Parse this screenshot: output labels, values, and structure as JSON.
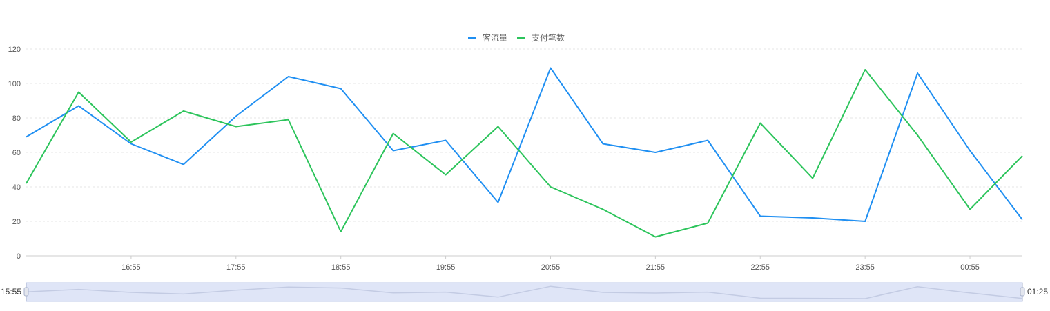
{
  "chart_data": {
    "type": "line",
    "title": "",
    "xlabel": "",
    "ylabel": "",
    "ylim": [
      0,
      120
    ],
    "yticks": [
      0,
      20,
      40,
      60,
      80,
      100,
      120
    ],
    "x": [
      "15:55",
      "16:25",
      "16:55",
      "17:25",
      "17:55",
      "18:25",
      "18:55",
      "19:25",
      "19:55",
      "20:25",
      "20:55",
      "21:25",
      "21:55",
      "22:25",
      "22:55",
      "23:25",
      "23:55",
      "00:25",
      "00:55",
      "01:25"
    ],
    "xtick_labels": [
      "16:55",
      "17:55",
      "18:55",
      "19:55",
      "20:55",
      "21:55",
      "22:55",
      "23:55",
      "00:55"
    ],
    "grid": "horizontal-dashed",
    "legend_position": "top-center",
    "series": [
      {
        "name": "客流量",
        "color": "#1f8ff2",
        "values": [
          69,
          87,
          65,
          53,
          81,
          104,
          97,
          61,
          67,
          31,
          109,
          65,
          60,
          67,
          23,
          22,
          20,
          106,
          61,
          21
        ]
      },
      {
        "name": "支付笔数",
        "color": "#2cc45b",
        "values": [
          42,
          95,
          66,
          84,
          75,
          79,
          14,
          71,
          47,
          75,
          40,
          27,
          11,
          19,
          77,
          45,
          108,
          70,
          27,
          58
        ]
      }
    ],
    "data_zoom": {
      "start_label": "15:55",
      "end_label": "01:25",
      "fill_color": "#dfe5f7",
      "border_color": "#bcc8e8"
    }
  }
}
